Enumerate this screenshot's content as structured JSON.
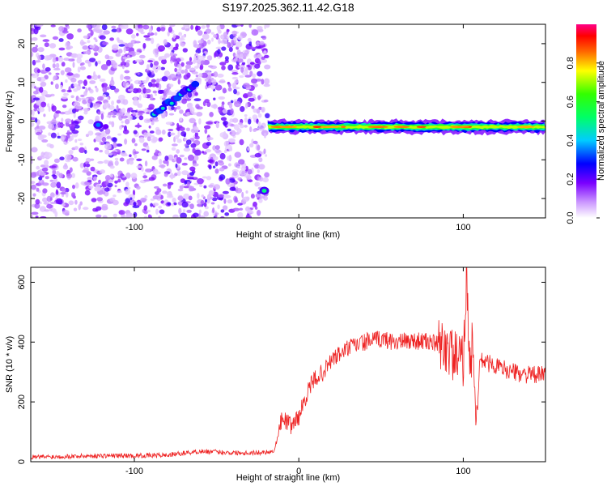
{
  "title": "S197.2025.362.11.42.G18",
  "colors": {
    "snr_line": "#ee2222",
    "axis": "#000000"
  },
  "chart_data": [
    {
      "type": "heatmap",
      "xlabel": "Height of straight line (km)",
      "ylabel": "Frequency (Hz)",
      "xlim": [
        -163,
        150
      ],
      "ylim": [
        -25,
        25
      ],
      "xticks": [
        -100,
        0,
        100
      ],
      "yticks": [
        -20,
        -10,
        0,
        10,
        20
      ],
      "colorbar": {
        "label": "Normalized spectral amplitude",
        "range": [
          0.0,
          1.0
        ],
        "ticks": [
          0.0,
          0.2,
          0.4,
          0.6,
          0.8
        ]
      },
      "features": [
        {
          "name": "dominant ridge",
          "x_start": -19,
          "x_end": 150,
          "frequency": -1.5,
          "peak_amplitude": 0.85
        },
        {
          "name": "diagonal streak",
          "x_start": -88,
          "x_end": -63,
          "freq_start": 2,
          "freq_end": 9,
          "peak_amplitude": 0.45
        },
        {
          "name": "low-frequency blob",
          "x": -21,
          "frequency": -18,
          "peak_amplitude": 0.5
        },
        {
          "name": "blob",
          "x": -122,
          "frequency": -1,
          "peak_amplitude": 0.35
        }
      ]
    },
    {
      "type": "line",
      "xlabel": "Height of straight line (km)",
      "ylabel": "SNR (10 * v/v)",
      "xlim": [
        -163,
        150
      ],
      "ylim": [
        0,
        650
      ],
      "xticks": [
        -100,
        0,
        100
      ],
      "yticks": [
        0,
        200,
        400,
        600
      ],
      "series": [
        {
          "name": "SNR",
          "x": [
            -163,
            -140,
            -120,
            -100,
            -80,
            -60,
            -40,
            -25,
            -15,
            -10,
            -5,
            0,
            5,
            10,
            15,
            20,
            30,
            40,
            50,
            60,
            70,
            80,
            90,
            95,
            100,
            102,
            104,
            106,
            108,
            110,
            120,
            130,
            140,
            150
          ],
          "values": [
            15,
            18,
            20,
            20,
            22,
            35,
            30,
            30,
            35,
            150,
            120,
            150,
            230,
            280,
            300,
            340,
            380,
            400,
            410,
            400,
            405,
            400,
            380,
            350,
            330,
            640,
            300,
            420,
            80,
            340,
            320,
            300,
            290,
            290
          ]
        }
      ]
    }
  ]
}
